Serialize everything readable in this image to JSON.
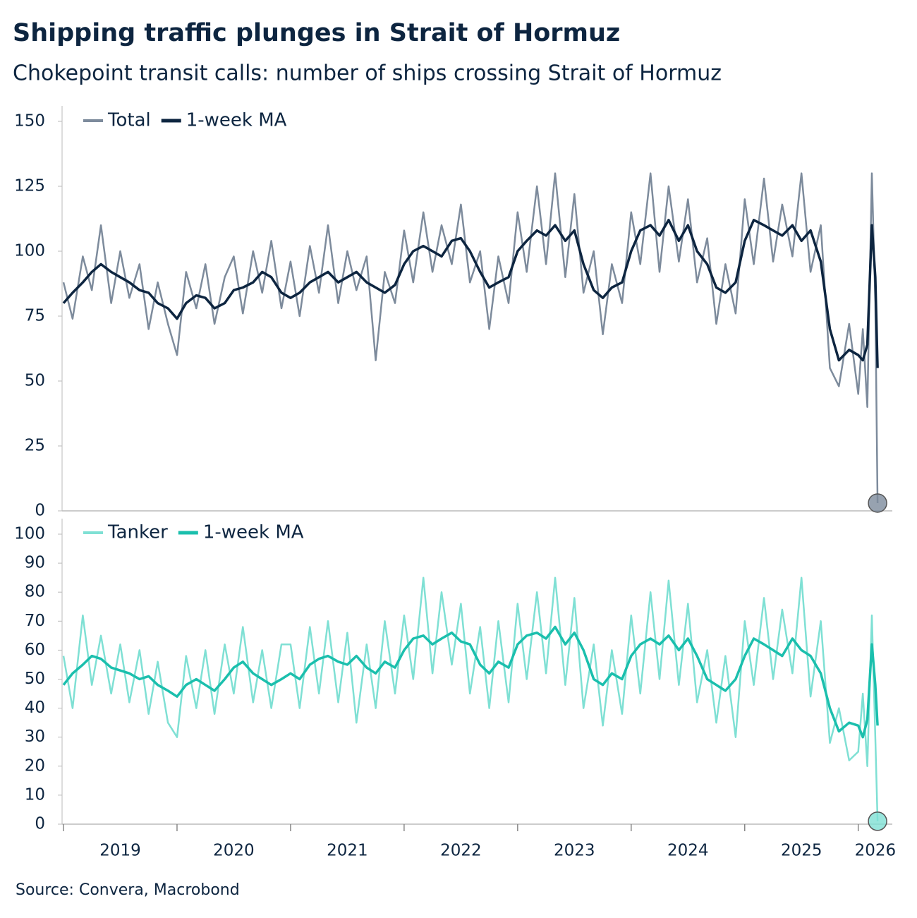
{
  "title": "Shipping traffic plunges in Strait of Hormuz",
  "subtitle": "Chokepoint transit calls: number of ships crossing Strait of Hormuz",
  "source": "Source: Convera, Macrobond",
  "chart_data": [
    {
      "type": "line",
      "x": [
        2019.0,
        2019.08,
        2019.17,
        2019.25,
        2019.33,
        2019.42,
        2019.5,
        2019.58,
        2019.67,
        2019.75,
        2019.83,
        2019.92,
        2020.0,
        2020.08,
        2020.17,
        2020.25,
        2020.33,
        2020.42,
        2020.5,
        2020.58,
        2020.67,
        2020.75,
        2020.83,
        2020.92,
        2021.0,
        2021.08,
        2021.17,
        2021.25,
        2021.33,
        2021.42,
        2021.5,
        2021.58,
        2021.67,
        2021.75,
        2021.83,
        2021.92,
        2022.0,
        2022.08,
        2022.17,
        2022.25,
        2022.33,
        2022.42,
        2022.5,
        2022.58,
        2022.67,
        2022.75,
        2022.83,
        2022.92,
        2023.0,
        2023.08,
        2023.17,
        2023.25,
        2023.33,
        2023.42,
        2023.5,
        2023.58,
        2023.67,
        2023.75,
        2023.83,
        2023.92,
        2024.0,
        2024.08,
        2024.17,
        2024.25,
        2024.33,
        2024.42,
        2024.5,
        2024.58,
        2024.67,
        2024.75,
        2024.83,
        2024.92,
        2025.0,
        2025.08,
        2025.17,
        2025.25,
        2025.33,
        2025.42,
        2025.5,
        2025.58,
        2025.67,
        2025.75,
        2025.83,
        2025.92,
        2026.0,
        2026.04,
        2026.08,
        2026.12,
        2026.15,
        2026.17
      ],
      "xlim": [
        2019,
        2026.3
      ],
      "ylim": [
        0,
        150
      ],
      "yticks": [
        0,
        25,
        50,
        75,
        100,
        125,
        150
      ],
      "series": [
        {
          "name": "Total",
          "color": "#7d8b9c",
          "values": [
            88,
            74,
            98,
            85,
            110,
            80,
            100,
            82,
            95,
            70,
            88,
            72,
            60,
            92,
            78,
            95,
            72,
            90,
            98,
            76,
            100,
            84,
            104,
            78,
            96,
            75,
            102,
            84,
            110,
            80,
            100,
            85,
            98,
            58,
            92,
            80,
            108,
            88,
            115,
            92,
            110,
            95,
            118,
            88,
            100,
            70,
            98,
            80,
            115,
            92,
            125,
            95,
            130,
            90,
            122,
            84,
            100,
            68,
            95,
            80,
            115,
            95,
            130,
            92,
            125,
            96,
            120,
            88,
            105,
            72,
            95,
            76,
            120,
            95,
            128,
            96,
            118,
            98,
            130,
            92,
            110,
            55,
            48,
            72,
            45,
            70,
            40,
            130,
            80,
            3
          ]
        },
        {
          "name": "1-week MA",
          "color": "#0d2540",
          "values": [
            80,
            84,
            88,
            92,
            95,
            92,
            90,
            88,
            85,
            84,
            80,
            78,
            74,
            80,
            83,
            82,
            78,
            80,
            85,
            86,
            88,
            92,
            90,
            84,
            82,
            84,
            88,
            90,
            92,
            88,
            90,
            92,
            88,
            86,
            84,
            87,
            95,
            100,
            102,
            100,
            98,
            104,
            105,
            100,
            92,
            86,
            88,
            90,
            100,
            104,
            108,
            106,
            110,
            104,
            108,
            95,
            85,
            82,
            86,
            88,
            100,
            108,
            110,
            106,
            112,
            104,
            110,
            100,
            95,
            86,
            84,
            88,
            104,
            112,
            110,
            108,
            106,
            110,
            104,
            108,
            96,
            70,
            58,
            62,
            60,
            58,
            64,
            110,
            90,
            55
          ]
        }
      ]
    },
    {
      "type": "line",
      "x": [
        2019.0,
        2019.08,
        2019.17,
        2019.25,
        2019.33,
        2019.42,
        2019.5,
        2019.58,
        2019.67,
        2019.75,
        2019.83,
        2019.92,
        2020.0,
        2020.08,
        2020.17,
        2020.25,
        2020.33,
        2020.42,
        2020.5,
        2020.58,
        2020.67,
        2020.75,
        2020.83,
        2020.92,
        2021.0,
        2021.08,
        2021.17,
        2021.25,
        2021.33,
        2021.42,
        2021.5,
        2021.58,
        2021.67,
        2021.75,
        2021.83,
        2021.92,
        2022.0,
        2022.08,
        2022.17,
        2022.25,
        2022.33,
        2022.42,
        2022.5,
        2022.58,
        2022.67,
        2022.75,
        2022.83,
        2022.92,
        2023.0,
        2023.08,
        2023.17,
        2023.25,
        2023.33,
        2023.42,
        2023.5,
        2023.58,
        2023.67,
        2023.75,
        2023.83,
        2023.92,
        2024.0,
        2024.08,
        2024.17,
        2024.25,
        2024.33,
        2024.42,
        2024.5,
        2024.58,
        2024.67,
        2024.75,
        2024.83,
        2024.92,
        2025.0,
        2025.08,
        2025.17,
        2025.25,
        2025.33,
        2025.42,
        2025.5,
        2025.58,
        2025.67,
        2025.75,
        2025.83,
        2025.92,
        2026.0,
        2026.04,
        2026.08,
        2026.12,
        2026.15,
        2026.17
      ],
      "xlim": [
        2019,
        2026.3
      ],
      "xticks": [
        2019,
        2020,
        2021,
        2022,
        2023,
        2024,
        2025,
        2026
      ],
      "ylim": [
        0,
        100
      ],
      "yticks": [
        0,
        10,
        20,
        30,
        40,
        50,
        60,
        70,
        80,
        90,
        100
      ],
      "series": [
        {
          "name": "Tanker",
          "color": "#7fe0d4",
          "values": [
            58,
            40,
            72,
            48,
            65,
            45,
            62,
            42,
            60,
            38,
            56,
            35,
            30,
            58,
            40,
            60,
            38,
            62,
            45,
            68,
            42,
            60,
            40,
            62,
            62,
            40,
            68,
            45,
            70,
            42,
            66,
            35,
            62,
            40,
            70,
            45,
            72,
            50,
            85,
            52,
            80,
            55,
            76,
            45,
            68,
            40,
            70,
            42,
            76,
            50,
            80,
            52,
            85,
            48,
            78,
            40,
            62,
            34,
            60,
            38,
            72,
            45,
            80,
            50,
            84,
            48,
            76,
            42,
            60,
            35,
            58,
            30,
            70,
            48,
            78,
            50,
            74,
            52,
            85,
            44,
            70,
            28,
            40,
            22,
            25,
            45,
            20,
            72,
            30,
            1
          ]
        },
        {
          "name": "1-week MA",
          "color": "#1bbfad",
          "values": [
            48,
            52,
            55,
            58,
            57,
            54,
            53,
            52,
            50,
            51,
            48,
            46,
            44,
            48,
            50,
            48,
            46,
            50,
            54,
            56,
            52,
            50,
            48,
            50,
            52,
            50,
            55,
            57,
            58,
            56,
            55,
            58,
            54,
            52,
            56,
            54,
            60,
            64,
            65,
            62,
            64,
            66,
            63,
            62,
            55,
            52,
            56,
            54,
            62,
            65,
            66,
            64,
            68,
            62,
            66,
            60,
            50,
            48,
            52,
            50,
            58,
            62,
            64,
            62,
            65,
            60,
            64,
            58,
            50,
            48,
            46,
            50,
            58,
            64,
            62,
            60,
            58,
            64,
            60,
            58,
            52,
            40,
            32,
            35,
            34,
            30,
            36,
            62,
            48,
            34
          ]
        }
      ]
    }
  ]
}
